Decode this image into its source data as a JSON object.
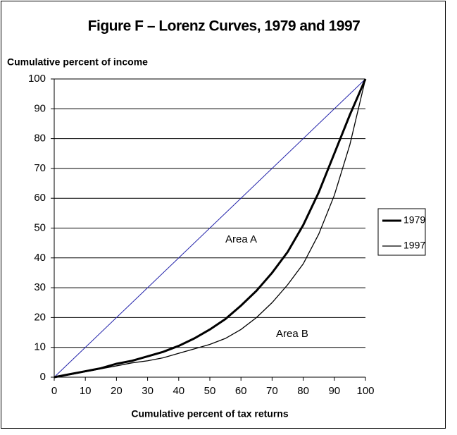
{
  "chart_data": {
    "type": "line",
    "title": "Figure F – Lorenz Curves, 1979 and 1997",
    "y_label": "Cumulative percent of income",
    "x_label": "Cumulative percent of tax returns",
    "x": [
      0,
      5,
      10,
      15,
      20,
      25,
      30,
      35,
      40,
      45,
      50,
      55,
      60,
      65,
      70,
      75,
      80,
      85,
      90,
      95,
      100
    ],
    "series": [
      {
        "name": "1979",
        "color": "#000000",
        "values": [
          0,
          1,
          2,
          3,
          4.5,
          5.5,
          7,
          8.5,
          10.5,
          13,
          16,
          19.5,
          24,
          29,
          35,
          42,
          51,
          62,
          75,
          88,
          100
        ]
      },
      {
        "name": "1997",
        "color": "#000000",
        "values": [
          0,
          0.8,
          1.8,
          2.8,
          3.8,
          4.8,
          5.5,
          6.5,
          8,
          9.5,
          11,
          13,
          16,
          20,
          25,
          31,
          38,
          48,
          61,
          78,
          100
        ]
      }
    ],
    "equality_line": {
      "x": [
        0,
        100
      ],
      "values": [
        0,
        100
      ],
      "color": "#2222aa"
    },
    "annotations": [
      "Area A",
      "Area B"
    ],
    "xlim": [
      0,
      100
    ],
    "xticks": [
      0,
      10,
      20,
      30,
      40,
      50,
      60,
      70,
      80,
      90,
      100
    ],
    "ylim": [
      0,
      100
    ],
    "yticks": [
      0,
      10,
      20,
      30,
      40,
      50,
      60,
      70,
      80,
      90,
      100
    ],
    "grid": true,
    "legend": "right"
  }
}
